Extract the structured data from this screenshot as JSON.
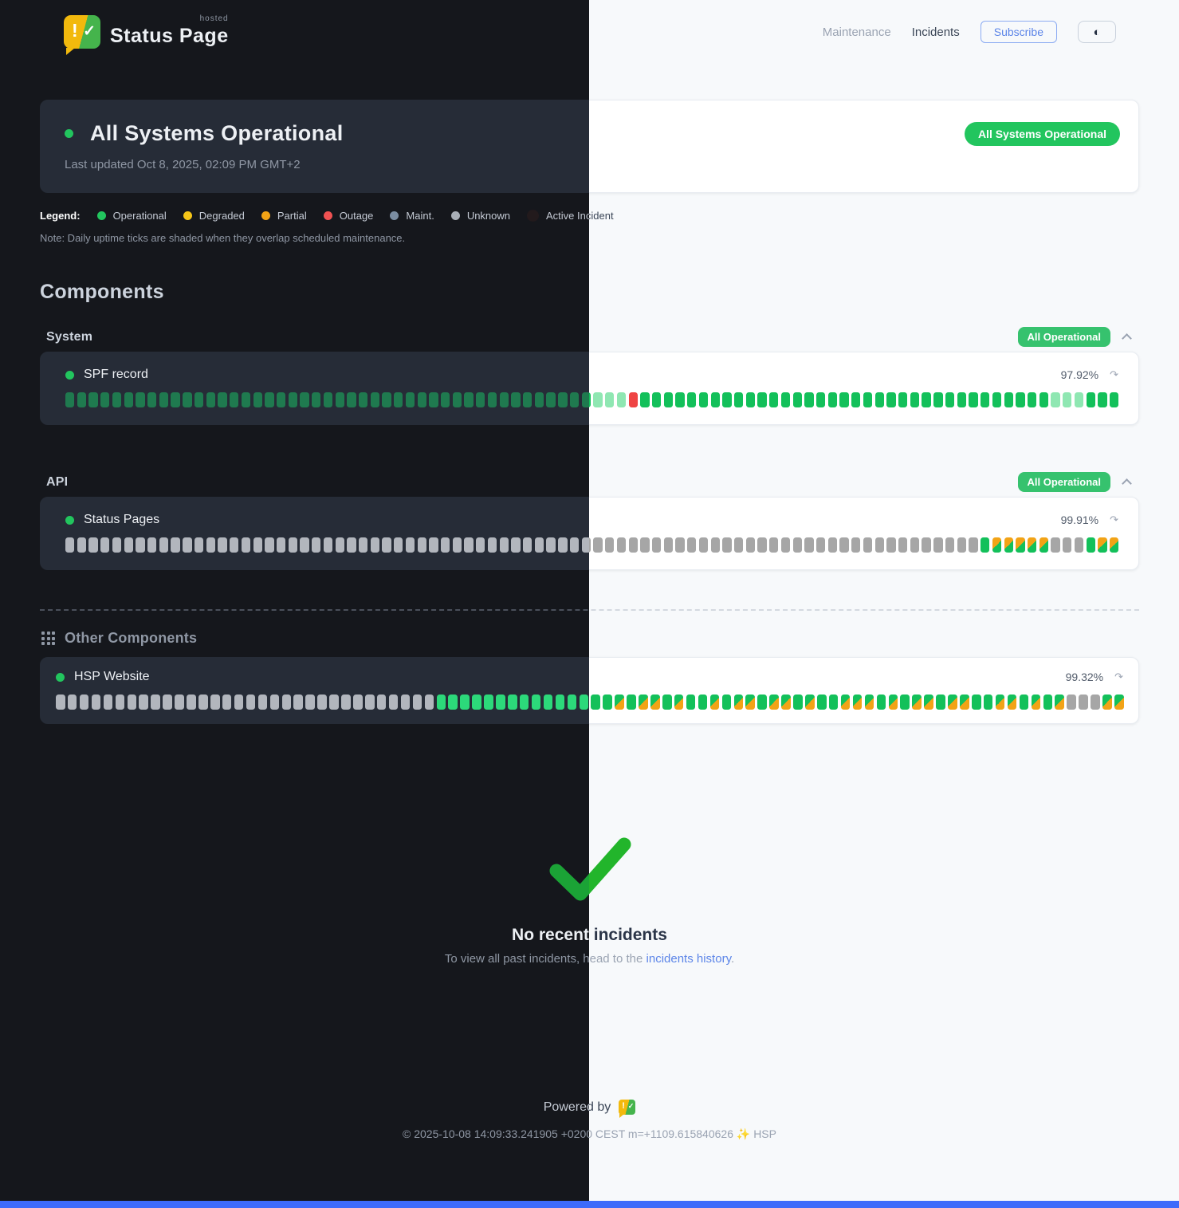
{
  "header": {
    "brand": {
      "name": "Status Page",
      "superscript": "hosted",
      "excl": "!",
      "check": "✓"
    },
    "nav": {
      "maintenance": "Maintenance",
      "incidents": "Incidents"
    },
    "subscribe_label": "Subscribe",
    "theme_toggle_glyph": "◐"
  },
  "status": {
    "title": "All Systems Operational",
    "last_updated": "Last updated Oct 8, 2025, 02:09 PM GMT+2",
    "badge": "All Systems Operational",
    "badge_color": "#22c55e"
  },
  "legend": {
    "label": "Legend:",
    "items": [
      {
        "label": "Operational",
        "color": "#22c55e"
      },
      {
        "label": "Degraded",
        "color": "#f5c518"
      },
      {
        "label": "Partial",
        "color": "#f2a316"
      },
      {
        "label": "Outage",
        "color": "#f05252"
      },
      {
        "label": "Maint.",
        "color": "#7b8da1"
      },
      {
        "label": "Unknown",
        "color": "#a8aeb6"
      },
      {
        "label": "Active Incident",
        "color": "#221a1c"
      }
    ],
    "note": "Note: Daily uptime ticks are shaded when they overlap scheduled maintenance."
  },
  "components": {
    "heading": "Components",
    "groups": [
      {
        "name": "System",
        "badge": "All Operational",
        "badge_color": "#36c26e",
        "items": [
          {
            "name": "SPF record",
            "uptime": "97.92%",
            "tone": "muted",
            "ticks": "ooooooooooooooooooooooooooooooooooooooooooooosssxooooooooooooooooooooooooooooooooooosssooo"
          }
        ]
      },
      {
        "name": "API",
        "badge": "All Operational",
        "badge_color": "#36c26e",
        "items": [
          {
            "name": "Status Pages",
            "uptime": "99.91%",
            "tone": "bright",
            "ticks": "uuuuuuuuuuuuuuuuuuuuuuuuuuuuuuuuuuuuuuuuuuuuuuuuuuuuuuuuuuuuuuuuuuuuuuuuuuuuuuopppppuuuopp"
          }
        ]
      }
    ],
    "other": {
      "heading": "Other Components",
      "items": [
        {
          "name": "HSP Website",
          "uptime": "99.32%",
          "tone": "bright",
          "ticks": "uuuuuuuuuuuuuuuuuuuuuuuuuuuuuuuuooooooooooooooogoggogoogoggoggogoogggogoggoggooggogoguuugg"
        }
      ]
    },
    "refresh_glyph": "↷"
  },
  "incidents_empty": {
    "title": "No recent incidents",
    "subtitle_prefix": "To view all past incidents, head to the ",
    "link_label": "incidents history",
    "subtitle_suffix": "."
  },
  "footer": {
    "powered_by": "Powered by",
    "copyright": "© 2025-10-08 14:09:33.241905 +0200 CEST m=+1109.615840626 ✨ HSP"
  },
  "accents": {
    "bottom_bar": "#3d6bfb",
    "operational_green": "#22c55e",
    "link_blue": "#5c85e8"
  }
}
